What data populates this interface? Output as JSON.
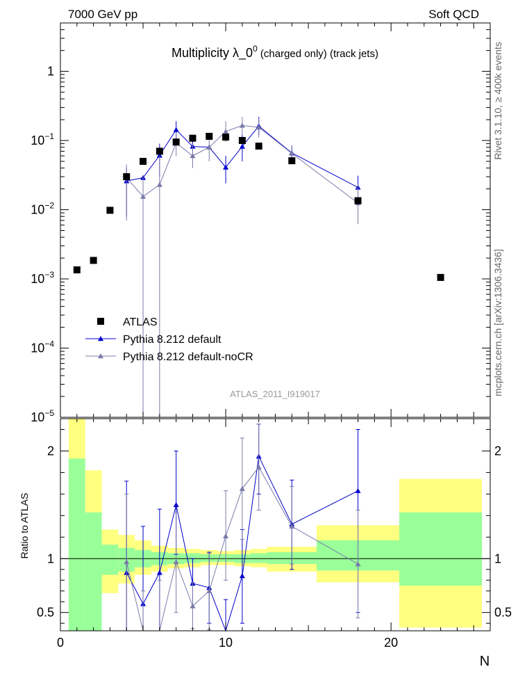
{
  "header": {
    "energy_label": "7000 GeV pp",
    "category_label": "Soft QCD"
  },
  "side_labels": {
    "rivet": "Rivet 3.1.10, ≥ 400k events",
    "mcplots": "mcplots.cern.ch [arXiv:1306.3436]"
  },
  "chart_data": {
    "type": "scatter",
    "title": {
      "main": "Multiplicity  λ_0",
      "superscript": "0",
      "suffix": " (charged only) (track jets)"
    },
    "watermark": "ATLAS_2011_I919017",
    "xlabel": "N",
    "ylabel_ratio": "Ratio to ATLAS",
    "x_range": [
      0,
      26
    ],
    "y_range_log": [
      1e-05,
      5
    ],
    "ratio_range": [
      0.33,
      2.3
    ],
    "x_ticks": [
      {
        "value": 0,
        "label": "0"
      },
      {
        "value": 10,
        "label": "10"
      },
      {
        "value": 20,
        "label": "20"
      }
    ],
    "y_ticks_main": [
      {
        "value": 1,
        "base": "1",
        "exp": ""
      },
      {
        "value": 0.1,
        "base": "10",
        "exp": "−1"
      },
      {
        "value": 0.01,
        "base": "10",
        "exp": "−2"
      },
      {
        "value": 0.001,
        "base": "10",
        "exp": "−3"
      },
      {
        "value": 0.0001,
        "base": "10",
        "exp": "−4"
      },
      {
        "value": 1e-05,
        "base": "10",
        "exp": "−5"
      }
    ],
    "y_ticks_ratio": [
      {
        "value": 0.5,
        "label": "0.5"
      },
      {
        "value": 1,
        "label": "1"
      },
      {
        "value": 2,
        "label": "2"
      }
    ],
    "legend": [
      {
        "name": "ATLAS",
        "marker": "square",
        "color": "#000000"
      },
      {
        "name": "Pythia 8.212 default",
        "marker": "triangle",
        "color": "#0000cc"
      },
      {
        "name": "Pythia 8.212 default-noCR",
        "marker": "triangle",
        "color": "#7a7aaa"
      }
    ],
    "data_points": [
      {
        "x": 1,
        "y": 0.00135
      },
      {
        "x": 2,
        "y": 0.00185
      },
      {
        "x": 3,
        "y": 0.0098
      },
      {
        "x": 4,
        "y": 0.03
      },
      {
        "x": 5,
        "y": 0.05
      },
      {
        "x": 6,
        "y": 0.07
      },
      {
        "x": 7,
        "y": 0.095
      },
      {
        "x": 8,
        "y": 0.108
      },
      {
        "x": 9,
        "y": 0.115
      },
      {
        "x": 10,
        "y": 0.112
      },
      {
        "x": 11,
        "y": 0.1
      },
      {
        "x": 12,
        "y": 0.083
      },
      {
        "x": 14,
        "y": 0.051
      },
      {
        "x": 18,
        "y": 0.0135
      },
      {
        "x": 23,
        "y": 0.00105
      }
    ],
    "series": [
      {
        "name": "Pythia 8.212 default",
        "color": "#0000cc",
        "points": [
          {
            "x": 4,
            "y": 0.026,
            "lo": 0.008,
            "hi": 0.04
          },
          {
            "x": 5,
            "y": 0.029
          },
          {
            "x": 6,
            "y": 0.061,
            "lo": 0.03,
            "hi": 0.09
          },
          {
            "x": 7,
            "y": 0.143,
            "lo": 0.1,
            "hi": 0.19
          },
          {
            "x": 8,
            "y": 0.082,
            "lo": 0.06,
            "hi": 0.11
          },
          {
            "x": 9,
            "y": 0.08
          },
          {
            "x": 10,
            "y": 0.041,
            "lo": 0.024,
            "hi": 0.06
          },
          {
            "x": 11,
            "y": 0.082,
            "lo": 0.05,
            "hi": 0.12
          },
          {
            "x": 12,
            "y": 0.162,
            "lo": 0.12,
            "hi": 0.22
          },
          {
            "x": 14,
            "y": 0.066,
            "lo": 0.05,
            "hi": 0.085
          },
          {
            "x": 18,
            "y": 0.021,
            "lo": 0.013,
            "hi": 0.031
          }
        ]
      },
      {
        "name": "Pythia 8.212 default-noCR",
        "color": "#7a7aaa",
        "points": [
          {
            "x": 4,
            "y": 0.029,
            "lo": 0.007,
            "hi": 0.045
          },
          {
            "x": 5,
            "y": 0.0155,
            "lo": 1e-05,
            "hi": 0.032
          },
          {
            "x": 6,
            "y": 0.023,
            "lo": 1e-05,
            "hi": 0.06
          },
          {
            "x": 7,
            "y": 0.092,
            "lo": 0.06,
            "hi": 0.13
          },
          {
            "x": 8,
            "y": 0.06,
            "lo": 0.04,
            "hi": 0.09
          },
          {
            "x": 9,
            "y": 0.08,
            "lo": 0.05,
            "hi": 0.12
          },
          {
            "x": 10,
            "y": 0.135,
            "lo": 0.095,
            "hi": 0.19
          },
          {
            "x": 11,
            "y": 0.165,
            "lo": 0.12,
            "hi": 0.22
          },
          {
            "x": 12,
            "y": 0.155,
            "lo": 0.11,
            "hi": 0.21
          },
          {
            "x": 14,
            "y": 0.065,
            "lo": 0.05,
            "hi": 0.085
          },
          {
            "x": 18,
            "y": 0.0125,
            "lo": 0.0062,
            "hi": 0.023
          }
        ]
      }
    ],
    "ratio_bands": [
      {
        "x0": 0.5,
        "x1": 1.5,
        "green": [
          0.33,
          1.93
        ],
        "yellow": [
          0.33,
          2.3
        ]
      },
      {
        "x0": 1.5,
        "x1": 2.5,
        "green": [
          0.33,
          1.43
        ],
        "yellow": [
          0.33,
          1.82
        ]
      },
      {
        "x0": 2.5,
        "x1": 3.5,
        "green": [
          0.85,
          1.13
        ],
        "yellow": [
          0.68,
          1.27
        ]
      },
      {
        "x0": 3.5,
        "x1": 4.5,
        "green": [
          0.88,
          1.1
        ],
        "yellow": [
          0.77,
          1.22
        ]
      },
      {
        "x0": 4.5,
        "x1": 5.5,
        "green": [
          0.92,
          1.08
        ],
        "yellow": [
          0.85,
          1.17
        ]
      },
      {
        "x0": 5.5,
        "x1": 6.5,
        "green": [
          0.94,
          1.06
        ],
        "yellow": [
          0.88,
          1.12
        ]
      },
      {
        "x0": 6.5,
        "x1": 7.5,
        "green": [
          0.95,
          1.05
        ],
        "yellow": [
          0.91,
          1.1
        ]
      },
      {
        "x0": 7.5,
        "x1": 8.5,
        "green": [
          0.96,
          1.05
        ],
        "yellow": [
          0.92,
          1.09
        ]
      },
      {
        "x0": 8.5,
        "x1": 9.5,
        "green": [
          0.97,
          1.04
        ],
        "yellow": [
          0.94,
          1.08
        ]
      },
      {
        "x0": 9.5,
        "x1": 10.5,
        "green": [
          0.97,
          1.04
        ],
        "yellow": [
          0.94,
          1.07
        ]
      },
      {
        "x0": 10.5,
        "x1": 11.5,
        "green": [
          0.96,
          1.04
        ],
        "yellow": [
          0.93,
          1.08
        ]
      },
      {
        "x0": 11.5,
        "x1": 12.5,
        "green": [
          0.96,
          1.05
        ],
        "yellow": [
          0.92,
          1.09
        ]
      },
      {
        "x0": 12.5,
        "x1": 15.5,
        "green": [
          0.95,
          1.06
        ],
        "yellow": [
          0.88,
          1.11
        ]
      },
      {
        "x0": 15.5,
        "x1": 20.5,
        "green": [
          0.89,
          1.17
        ],
        "yellow": [
          0.78,
          1.31
        ]
      },
      {
        "x0": 20.5,
        "x1": 25.5,
        "green": [
          0.75,
          1.43
        ],
        "yellow": [
          0.36,
          1.74
        ]
      }
    ],
    "ratio_series": [
      {
        "name": "Pythia 8.212 default",
        "color": "#0000cc",
        "points": [
          {
            "x": 4,
            "y": 0.87,
            "lo": 0.33,
            "hi": 1.72
          },
          {
            "x": 5,
            "y": 0.58,
            "lo": 0.33,
            "hi": 1.3
          },
          {
            "x": 6,
            "y": 0.87,
            "lo": 0.33,
            "hi": 1.46
          },
          {
            "x": 7,
            "y": 1.5,
            "lo": 1.04,
            "hi": 2.0
          },
          {
            "x": 8,
            "y": 0.77,
            "lo": 0.55,
            "hi": 1.0
          },
          {
            "x": 9,
            "y": 0.73,
            "lo": 0.4,
            "hi": 1.06
          },
          {
            "x": 10,
            "y": 0.28,
            "lo": 0.2,
            "hi": 0.62
          },
          {
            "x": 11,
            "y": 0.84,
            "lo": 0.4,
            "hi": 1.27
          },
          {
            "x": 12,
            "y": 1.95,
            "lo": 1.6,
            "hi": 2.25
          },
          {
            "x": 14,
            "y": 1.32,
            "lo": 0.9,
            "hi": 1.73
          },
          {
            "x": 18,
            "y": 1.63,
            "lo": 0.5,
            "hi": 2.2
          }
        ]
      },
      {
        "name": "Pythia 8.212 default-noCR",
        "color": "#7a7aaa",
        "points": [
          {
            "x": 4,
            "y": 0.97,
            "lo": 0.33,
            "hi": 1.6
          },
          {
            "x": 5,
            "y": 0.31,
            "lo": 0.2,
            "hi": 0.7
          },
          {
            "x": 6,
            "y": 0.31,
            "lo": 0.2,
            "hi": 0.8
          },
          {
            "x": 7,
            "y": 0.97,
            "lo": 0.5,
            "hi": 1.43
          },
          {
            "x": 8,
            "y": 0.56,
            "lo": 0.35,
            "hi": 0.78
          },
          {
            "x": 9,
            "y": 0.7,
            "lo": 0.34,
            "hi": 1.05
          },
          {
            "x": 10,
            "y": 1.21,
            "lo": 0.8,
            "hi": 1.63
          },
          {
            "x": 11,
            "y": 1.65,
            "lo": 1.18,
            "hi": 2.12
          },
          {
            "x": 12,
            "y": 1.85,
            "lo": 1.45,
            "hi": 2.25
          },
          {
            "x": 14,
            "y": 1.3,
            "lo": 0.95,
            "hi": 1.67
          },
          {
            "x": 18,
            "y": 0.95,
            "lo": 0.45,
            "hi": 1.45
          }
        ]
      }
    ]
  }
}
